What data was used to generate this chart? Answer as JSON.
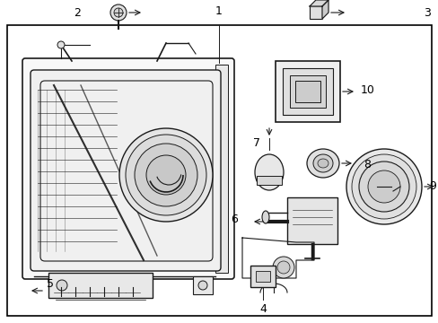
{
  "background_color": "#ffffff",
  "border_color": "#000000",
  "line_color": "#1a1a1a",
  "label_color": "#000000",
  "fig_width": 4.89,
  "fig_height": 3.6,
  "dpi": 100
}
